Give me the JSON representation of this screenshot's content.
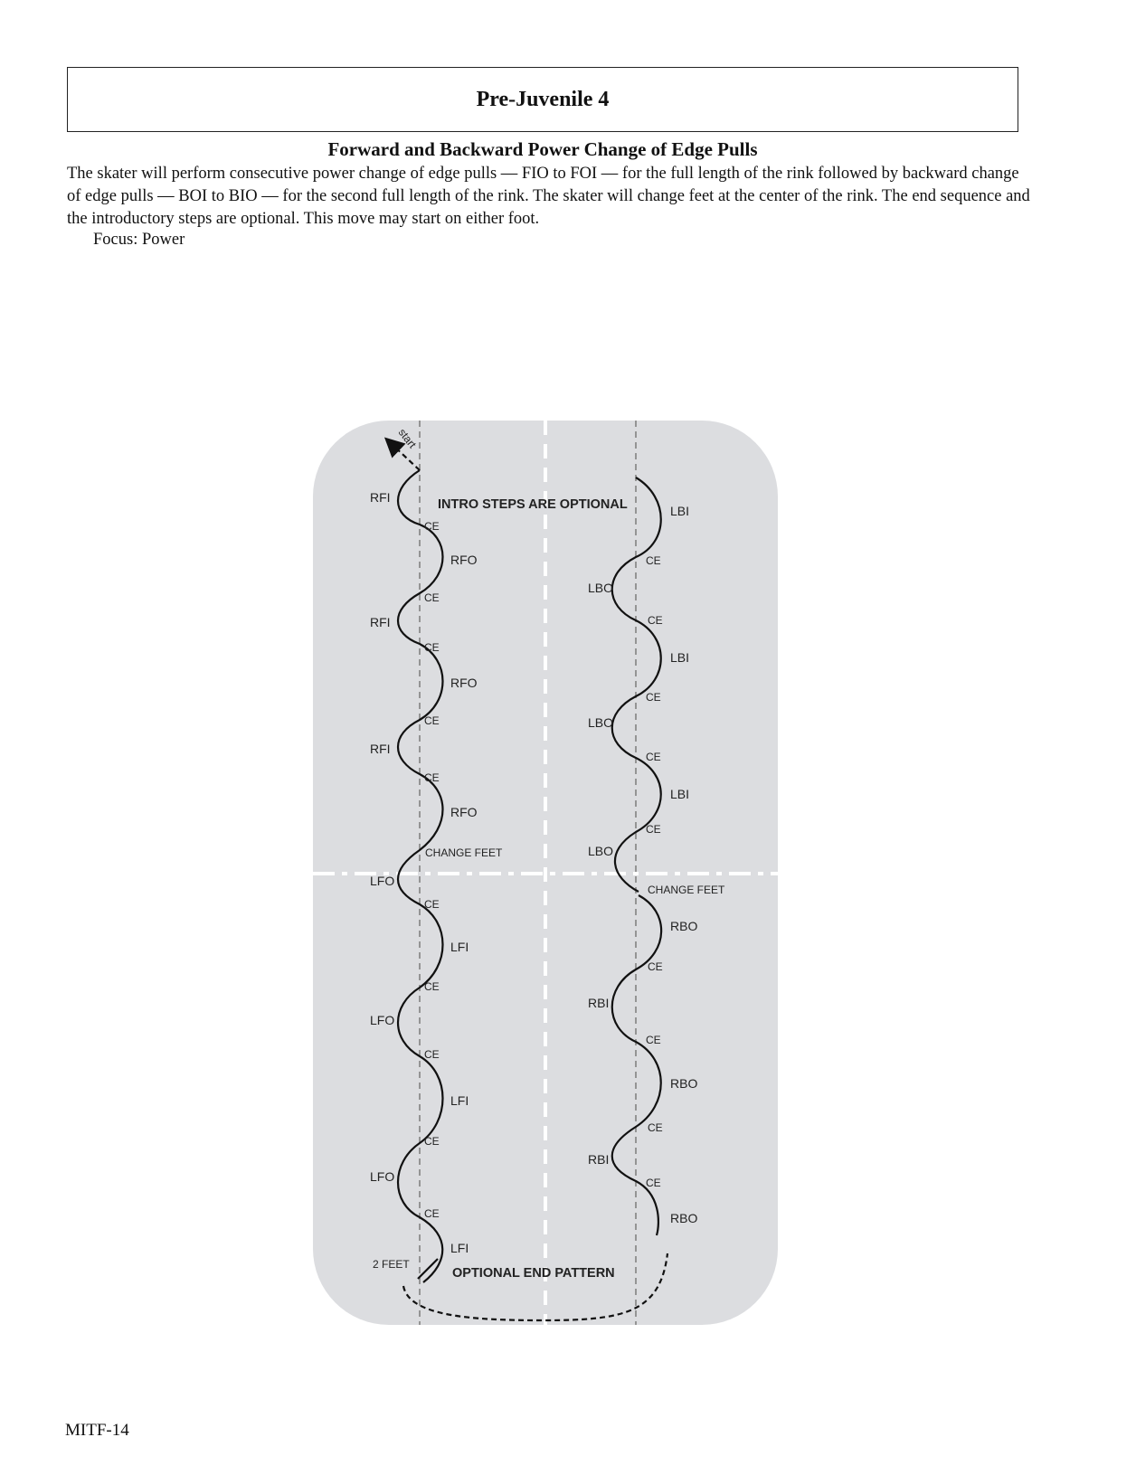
{
  "header": {
    "title": "Pre-Juvenile 4"
  },
  "move": {
    "heading": "Forward and Backward Power Change of Edge Pulls",
    "description": "The skater will perform consecutive power change of edge pulls — FIO to FOI — for the full length of the rink followed by backward change of edge pulls — BOI to BIO — for the second full length of the rink. The skater will change feet at the center of the rink. The end sequence and the introductory steps are optional. This move may start on either foot.",
    "focus": "Focus: Power"
  },
  "diagram": {
    "start_label": "start",
    "intro_note": "INTRO STEPS ARE OPTIONAL",
    "end_note": "OPTIONAL END PATTERN",
    "two_feet": "2 FEET",
    "change_feet_left": "CHANGE FEET",
    "change_feet_right": "CHANGE FEET",
    "change_edge": "CE",
    "left_pattern_edges": [
      "RFI",
      "RFO",
      "RFI",
      "RFO",
      "RFI",
      "RFO",
      "LFO",
      "LFI",
      "LFO",
      "LFI",
      "LFO",
      "LFI"
    ],
    "right_pattern_edges": [
      "LBI",
      "LBO",
      "LBI",
      "LBO",
      "LBI",
      "LBO",
      "RBO",
      "RBI",
      "RBO",
      "RBI",
      "RBO"
    ]
  },
  "footer": {
    "page_id": "MITF-14"
  }
}
